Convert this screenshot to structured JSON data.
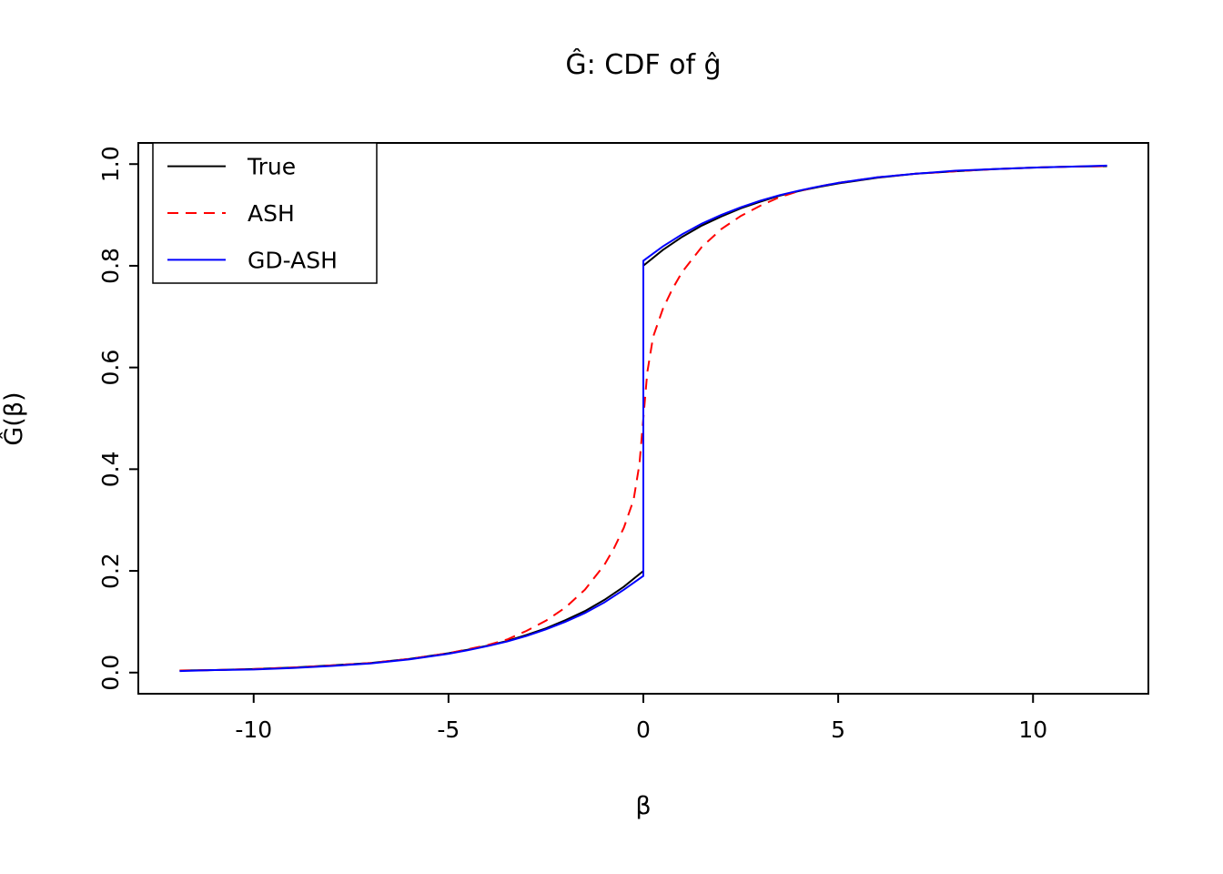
{
  "page": {
    "background": "#ffffff"
  },
  "chart_data": {
    "type": "line",
    "title": "Ĝ: CDF of ĝ",
    "xlabel": "β",
    "ylabel": "Ĝ(β)",
    "xlim": [
      -12.96,
      12.96
    ],
    "ylim": [
      -0.0416,
      1.0416
    ],
    "grid": false,
    "xticks": {
      "values": [
        -10,
        -5,
        0,
        5,
        10
      ],
      "labels": [
        "-10",
        "-5",
        "0",
        "5",
        "10"
      ]
    },
    "yticks": {
      "values": [
        0,
        0.2,
        0.4,
        0.6,
        0.8,
        1.0
      ],
      "labels": [
        "0.0",
        "0.2",
        "0.4",
        "0.6",
        "0.8",
        "1.0"
      ]
    },
    "legend": {
      "position": "top-left",
      "entries": [
        "True",
        "ASH",
        "GD-ASH"
      ]
    },
    "series": [
      {
        "name": "True",
        "color": "#000000",
        "dash": "solid",
        "x": [
          -11.9,
          -11,
          -10,
          -9,
          -8,
          -7,
          -6,
          -5,
          -4.5,
          -4,
          -3.5,
          -3,
          -2.5,
          -2,
          -1.5,
          -1,
          -0.5,
          0,
          0,
          0.5,
          1,
          1.5,
          2,
          2.5,
          3,
          3.5,
          4,
          4.5,
          5,
          6,
          7,
          8,
          9,
          10,
          11,
          11.9
        ],
        "y": [
          0.004,
          0.005,
          0.007,
          0.01,
          0.014,
          0.019,
          0.027,
          0.038,
          0.045,
          0.053,
          0.062,
          0.074,
          0.087,
          0.103,
          0.121,
          0.143,
          0.169,
          0.2,
          0.8,
          0.831,
          0.857,
          0.879,
          0.897,
          0.913,
          0.926,
          0.938,
          0.947,
          0.955,
          0.962,
          0.973,
          0.981,
          0.986,
          0.99,
          0.993,
          0.995,
          0.996
        ]
      },
      {
        "name": "ASH",
        "color": "#ff0000",
        "dash": "dashed",
        "x": [
          -11.9,
          -11,
          -10,
          -9,
          -8,
          -7,
          -6,
          -5,
          -4.5,
          -4,
          -3.5,
          -3,
          -2.5,
          -2,
          -1.5,
          -1,
          -0.75,
          -0.5,
          -0.25,
          -0.1,
          0,
          0.1,
          0.25,
          0.5,
          0.75,
          1,
          1.5,
          2,
          2.5,
          3,
          3.5,
          4,
          4.5,
          5,
          6,
          7,
          8,
          9,
          10,
          11,
          11.9
        ],
        "y": [
          0.004,
          0.005,
          0.007,
          0.01,
          0.014,
          0.019,
          0.027,
          0.038,
          0.046,
          0.054,
          0.065,
          0.082,
          0.102,
          0.128,
          0.163,
          0.212,
          0.245,
          0.285,
          0.34,
          0.41,
          0.5,
          0.59,
          0.66,
          0.715,
          0.755,
          0.788,
          0.837,
          0.872,
          0.898,
          0.918,
          0.935,
          0.947,
          0.956,
          0.963,
          0.974,
          0.981,
          0.986,
          0.99,
          0.993,
          0.995,
          0.996
        ]
      },
      {
        "name": "GD-ASH",
        "color": "#0000ff",
        "dash": "solid",
        "x": [
          -11.9,
          -11,
          -10,
          -9,
          -8,
          -7,
          -6,
          -5,
          -4.5,
          -4,
          -3.5,
          -3,
          -2.5,
          -2,
          -1.5,
          -1,
          -0.5,
          0,
          0,
          0.5,
          1,
          1.5,
          2,
          2.5,
          3,
          3.5,
          4,
          4.5,
          5,
          6,
          7,
          8,
          9,
          10,
          11,
          11.9
        ],
        "y": [
          0.003,
          0.005,
          0.006,
          0.009,
          0.013,
          0.018,
          0.026,
          0.037,
          0.044,
          0.052,
          0.061,
          0.072,
          0.085,
          0.1,
          0.117,
          0.138,
          0.163,
          0.19,
          0.81,
          0.838,
          0.862,
          0.883,
          0.9,
          0.915,
          0.928,
          0.939,
          0.948,
          0.956,
          0.963,
          0.974,
          0.981,
          0.987,
          0.99,
          0.993,
          0.995,
          0.997
        ]
      }
    ]
  }
}
